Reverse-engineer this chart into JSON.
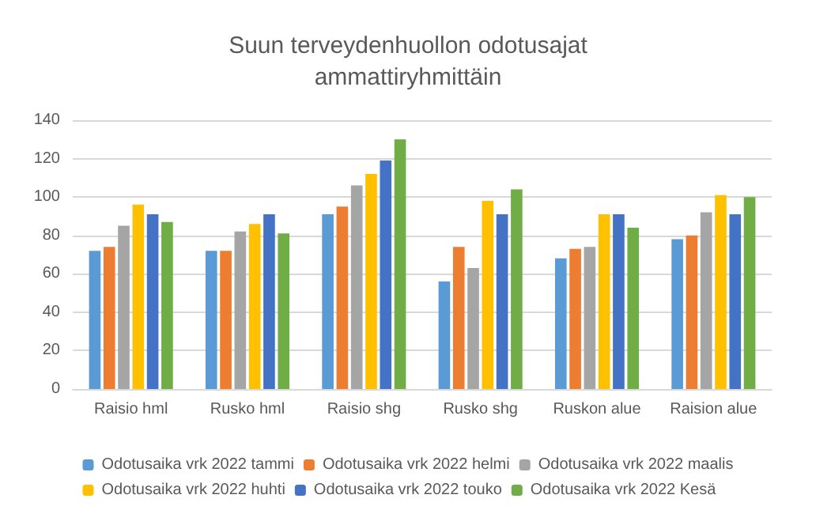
{
  "chart_data": {
    "type": "bar",
    "title": "Suun terveydenhuollon odotusajat\nammattiryhmittäin",
    "categories": [
      "Raisio hml",
      "Rusko hml",
      "Raisio shg",
      "Rusko shg",
      "Ruskon alue",
      "Raision alue"
    ],
    "series": [
      {
        "name": "Odotusaika vrk 2022 tammi",
        "color": "#5b9bd5",
        "values": [
          72,
          72,
          91,
          56,
          68,
          78
        ]
      },
      {
        "name": "Odotusaika vrk 2022 helmi",
        "color": "#ed7d31",
        "values": [
          74,
          72,
          95,
          74,
          73,
          80
        ]
      },
      {
        "name": "Odotusaika vrk 2022 maalis",
        "color": "#a5a5a5",
        "values": [
          85,
          82,
          106,
          63,
          74,
          92
        ]
      },
      {
        "name": "Odotusaika vrk 2022 huhti",
        "color": "#ffc000",
        "values": [
          96,
          86,
          112,
          98,
          91,
          101
        ]
      },
      {
        "name": "Odotusaika vrk 2022 touko",
        "color": "#4472c4",
        "values": [
          91,
          91,
          119,
          91,
          91,
          91
        ]
      },
      {
        "name": "Odotusaika vrk 2022 Kesä",
        "color": "#70ad47",
        "values": [
          87,
          81,
          130,
          104,
          84,
          100
        ]
      }
    ],
    "ylim": [
      0,
      140
    ],
    "yticks": [
      0,
      20,
      40,
      60,
      80,
      100,
      120,
      140
    ],
    "grid": "y",
    "legend": "bottom"
  }
}
